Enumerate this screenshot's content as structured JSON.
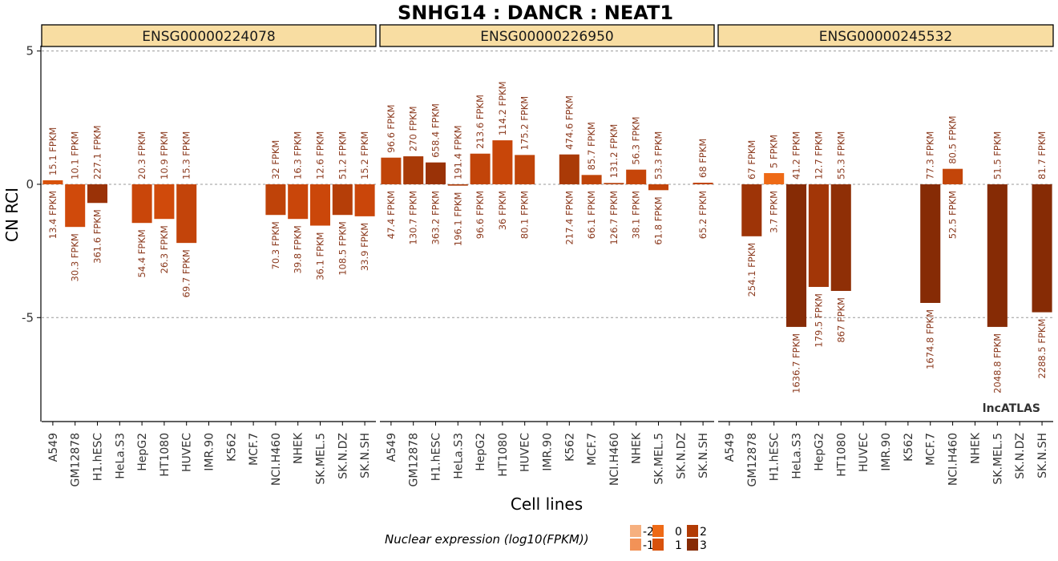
{
  "chart_data": {
    "type": "bar",
    "title": "SNHG14 : DANCR : NEAT1",
    "xlabel": "Cell lines",
    "ylabel": "CN RCI",
    "ylim": [
      -8.9,
      5.2
    ],
    "yticks": [
      5,
      0,
      -5
    ],
    "gridlines_at": [
      5,
      0,
      -5
    ],
    "watermark": "lncATLAS",
    "legend": {
      "title": "Nuclear expression (log10(FPKM))",
      "placement": "bottom",
      "entries": [
        {
          "label": "-2",
          "color": "#F6B07F"
        },
        {
          "label": "-1",
          "color": "#F29257"
        },
        {
          "label": "0",
          "color": "#EE6A16"
        },
        {
          "label": "1",
          "color": "#D8520C"
        },
        {
          "label": "2",
          "color": "#B23B05"
        },
        {
          "label": "3",
          "color": "#862B05"
        }
      ]
    },
    "categories": [
      "A549",
      "GM12878",
      "H1.hESC",
      "HeLa.S3",
      "HepG2",
      "HT1080",
      "HUVEC",
      "IMR.90",
      "K562",
      "MCF.7",
      "NCI.H460",
      "NHEK",
      "SK.MEL.5",
      "SK.N.DZ",
      "SK.N.SH"
    ],
    "panels": [
      {
        "name": "ENSG00000224078",
        "bars": [
          {
            "cell": "A549",
            "value": 0.15,
            "top_label": "15.1 FPKM",
            "bottom_label": "13.4 FPKM",
            "color": "#D8520C"
          },
          {
            "cell": "GM12878",
            "value": -1.6,
            "top_label": "10.1 FPKM",
            "bottom_label": "30.3 FPKM",
            "color": "#D04A0B"
          },
          {
            "cell": "H1.hESC",
            "value": -0.7,
            "top_label": "227.1 FPKM",
            "bottom_label": "361.6 FPKM",
            "color": "#9A3207"
          },
          {
            "cell": "HepG2",
            "value": -1.45,
            "top_label": "20.3 FPKM",
            "bottom_label": "54.4 FPKM",
            "color": "#C9460A"
          },
          {
            "cell": "HT1080",
            "value": -1.3,
            "top_label": "10.9 FPKM",
            "bottom_label": "26.3 FPKM",
            "color": "#D04A0B"
          },
          {
            "cell": "HUVEC",
            "value": -2.2,
            "top_label": "15.3 FPKM",
            "bottom_label": "69.7 FPKM",
            "color": "#C3440A"
          },
          {
            "cell": "NCI.H460",
            "value": -1.15,
            "top_label": "32 FPKM",
            "bottom_label": "70.3 FPKM",
            "color": "#BF4309"
          },
          {
            "cell": "NHEK",
            "value": -1.3,
            "top_label": "16.3 FPKM",
            "bottom_label": "39.8 FPKM",
            "color": "#C9460A"
          },
          {
            "cell": "SK.MEL.5",
            "value": -1.55,
            "top_label": "12.6 FPKM",
            "bottom_label": "36.1 FPKM",
            "color": "#CB470A"
          },
          {
            "cell": "SK.N.DZ",
            "value": -1.15,
            "top_label": "51.2 FPKM",
            "bottom_label": "108.5 FPKM",
            "color": "#B53E08"
          },
          {
            "cell": "SK.N.SH",
            "value": -1.2,
            "top_label": "15.2 FPKM",
            "bottom_label": "33.9 FPKM",
            "color": "#CA460A"
          }
        ]
      },
      {
        "name": "ENSG00000226950",
        "bars": [
          {
            "cell": "A549",
            "value": 1.0,
            "top_label": "96.6 FPKM",
            "bottom_label": "47.4 FPKM",
            "color": "#C04409"
          },
          {
            "cell": "GM12878",
            "value": 1.05,
            "top_label": "270 FPKM",
            "bottom_label": "130.7 FPKM",
            "color": "#A93A07"
          },
          {
            "cell": "H1.hESC",
            "value": 0.82,
            "top_label": "658.4 FPKM",
            "bottom_label": "363.2 FPKM",
            "color": "#9A3207"
          },
          {
            "cell": "HeLa.S3",
            "value": -0.05,
            "top_label": "191.4 FPKM",
            "bottom_label": "196.1 FPKM",
            "color": "#A93A07"
          },
          {
            "cell": "HepG2",
            "value": 1.15,
            "top_label": "213.6 FPKM",
            "bottom_label": "96.6 FPKM",
            "color": "#C24409"
          },
          {
            "cell": "HT1080",
            "value": 1.65,
            "top_label": "114.2 FPKM",
            "bottom_label": "36 FPKM",
            "color": "#C84609"
          },
          {
            "cell": "HUVEC",
            "value": 1.1,
            "top_label": "175.2 FPKM",
            "bottom_label": "80.1 FPKM",
            "color": "#C04409"
          },
          {
            "cell": "K562",
            "value": 1.12,
            "top_label": "474.6 FPKM",
            "bottom_label": "217.4 FPKM",
            "color": "#AA3A07"
          },
          {
            "cell": "MCF.7",
            "value": 0.35,
            "top_label": "85.7 FPKM",
            "bottom_label": "66.1 FPKM",
            "color": "#C04409"
          },
          {
            "cell": "NCI.H460",
            "value": 0.05,
            "top_label": "131.2 FPKM",
            "bottom_label": "126.7 FPKM",
            "color": "#B63E08"
          },
          {
            "cell": "NHEK",
            "value": 0.55,
            "top_label": "56.3 FPKM",
            "bottom_label": "38.1 FPKM",
            "color": "#C64509"
          },
          {
            "cell": "SK.MEL.5",
            "value": -0.22,
            "top_label": "53.3 FPKM",
            "bottom_label": "61.8 FPKM",
            "color": "#C24409"
          },
          {
            "cell": "SK.N.SH",
            "value": 0.06,
            "top_label": "68 FPKM",
            "bottom_label": "65.2 FPKM",
            "color": "#C14409"
          }
        ]
      },
      {
        "name": "ENSG00000245532",
        "bars": [
          {
            "cell": "GM12878",
            "value": -1.95,
            "top_label": "67 FPKM",
            "bottom_label": "254.1 FPKM",
            "color": "#9E3407"
          },
          {
            "cell": "H1.hESC",
            "value": 0.42,
            "top_label": "5 FPKM",
            "bottom_label": "3.7 FPKM",
            "color": "#EE6A16"
          },
          {
            "cell": "HeLa.S3",
            "value": -5.35,
            "top_label": "41.2 FPKM",
            "bottom_label": "1636.7 FPKM",
            "color": "#862B05"
          },
          {
            "cell": "HepG2",
            "value": -3.85,
            "top_label": "12.7 FPKM",
            "bottom_label": "179.5 FPKM",
            "color": "#A23607"
          },
          {
            "cell": "HT1080",
            "value": -4.0,
            "top_label": "55.3 FPKM",
            "bottom_label": "867 FPKM",
            "color": "#8F2F06"
          },
          {
            "cell": "MCF.7",
            "value": -4.45,
            "top_label": "77.3 FPKM",
            "bottom_label": "1674.8 FPKM",
            "color": "#862B05"
          },
          {
            "cell": "NCI.H460",
            "value": 0.58,
            "top_label": "80.5 FPKM",
            "bottom_label": "52.5 FPKM",
            "color": "#C34509"
          },
          {
            "cell": "SK.MEL.5",
            "value": -5.35,
            "top_label": "51.5 FPKM",
            "bottom_label": "2048.8 FPKM",
            "color": "#862B05"
          },
          {
            "cell": "SK.N.SH",
            "value": -4.8,
            "top_label": "81.7 FPKM",
            "bottom_label": "2288.5 FPKM",
            "color": "#862B05"
          }
        ]
      }
    ]
  }
}
